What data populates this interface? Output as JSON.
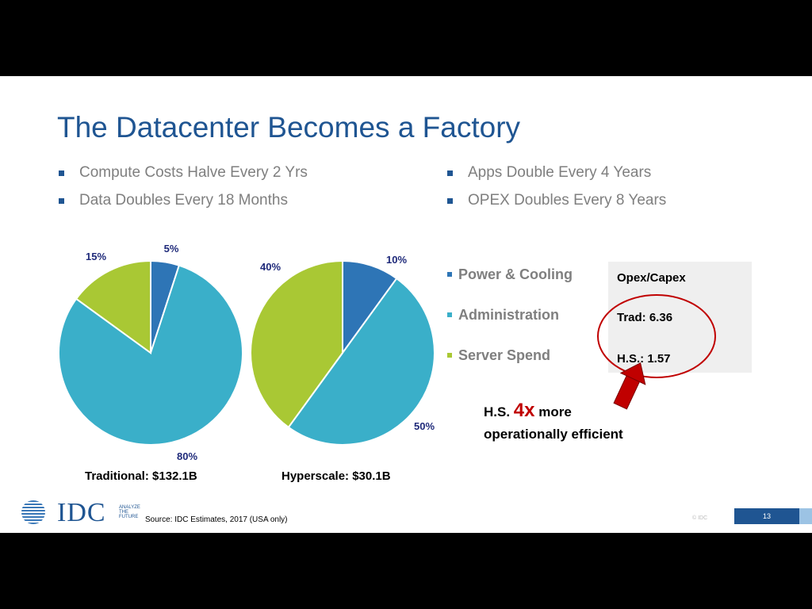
{
  "slide": {
    "title": "The Datacenter Becomes a Factory",
    "bullets_left": [
      "Compute Costs Halve Every 2 Yrs",
      "Data Doubles Every 18 Months"
    ],
    "bullets_right": [
      "Apps Double Every 4 Years",
      "OPEX Doubles Every 8 Years"
    ]
  },
  "chart_data": [
    {
      "type": "pie",
      "title": "Traditional: $132.1B",
      "categories": [
        "Power & Cooling",
        "Administration",
        "Server Spend"
      ],
      "values": [
        5,
        80,
        15
      ],
      "labels": [
        "5%",
        "80%",
        "15%"
      ]
    },
    {
      "type": "pie",
      "title": "Hyperscale: $30.1B",
      "categories": [
        "Power & Cooling",
        "Administration",
        "Server Spend"
      ],
      "values": [
        10,
        50,
        40
      ],
      "labels": [
        "10%",
        "50%",
        "40%"
      ]
    }
  ],
  "legend": [
    {
      "label": "Power & Cooling",
      "color": "#2e75b6"
    },
    {
      "label": "Administration",
      "color": "#3aafc9"
    },
    {
      "label": "Server Spend",
      "color": "#a9c834"
    }
  ],
  "opex_box": {
    "title": "Opex/Capex",
    "trad": "Trad: 6.36",
    "hs": "H.S.: 1.57"
  },
  "callout": {
    "prefix": "H.S.",
    "factor": "4x",
    "suffix": "more",
    "line2": "operationally efficient"
  },
  "colors": {
    "accent": "#1f5592",
    "circle": "#c00000"
  },
  "footer": {
    "logo": "IDC",
    "tagline": [
      "ANALYZE",
      "THE",
      "FUTURE"
    ],
    "source": "Source: IDC Estimates, 2017 (USA only)",
    "copyright": "© IDC",
    "page": "13"
  }
}
